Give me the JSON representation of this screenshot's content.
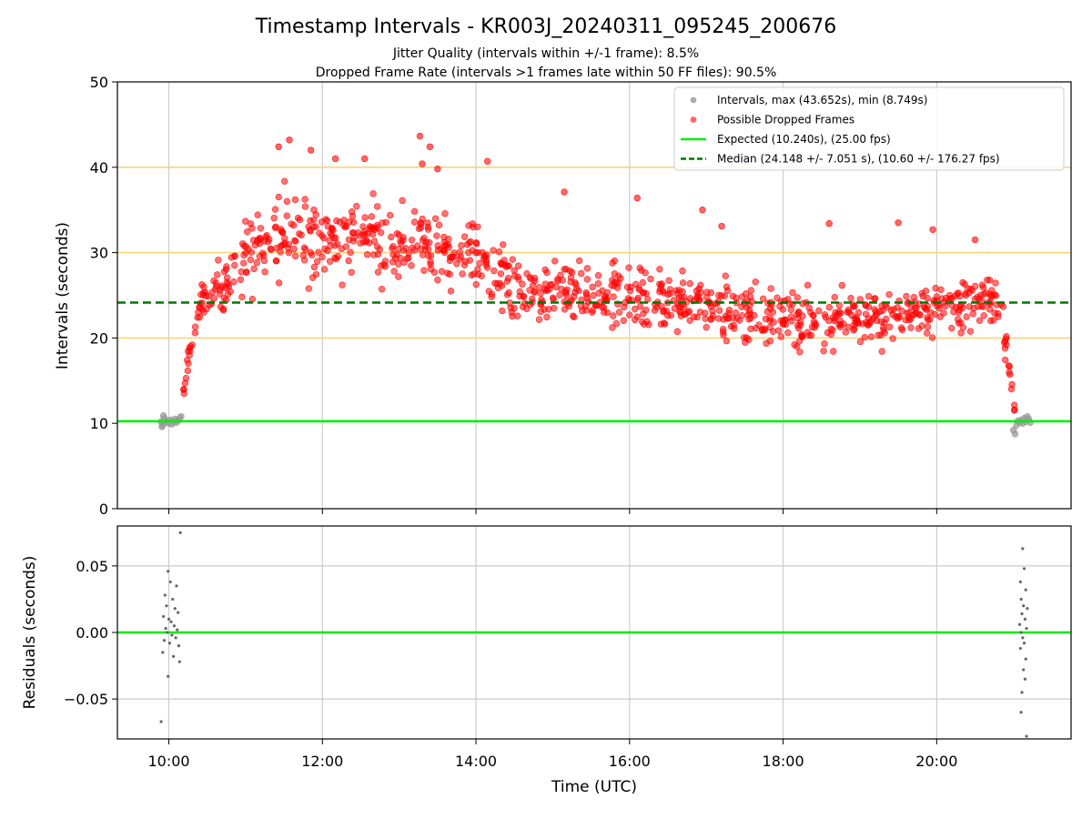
{
  "chart_data": {
    "type": "scatter",
    "title": "Timestamp Intervals - KR003J_20240311_095245_200676",
    "subtitle_lines": [
      "Jitter Quality (intervals within +/-1 frame): 8.5%",
      "Dropped Frame Rate (intervals >1 frames late within 50 FF files): 90.5%"
    ],
    "xlabel": "Time (UTC)",
    "x_unit": "hours UTC",
    "x_ticks": [
      10,
      12,
      14,
      16,
      18,
      20
    ],
    "x_tick_labels": [
      "10:00",
      "12:00",
      "14:00",
      "16:00",
      "18:00",
      "20:00"
    ],
    "xlim": [
      9.33,
      21.75
    ],
    "grid": true,
    "legend_position": "top-right",
    "colors": {
      "intervals": "#999999",
      "dropped": "#ff0000",
      "expected": "#00ee00",
      "median": "#007700",
      "band": "#f7d57a",
      "residual": "#666666",
      "grid": "#cccccc"
    },
    "top_panel": {
      "ylabel": "Intervals (seconds)",
      "ylim": [
        0,
        50
      ],
      "y_ticks": [
        0,
        10,
        20,
        30,
        40,
        50
      ],
      "y_tick_labels": [
        "0",
        "10",
        "20",
        "30",
        "40",
        "50"
      ],
      "band_lines": [
        20,
        30,
        40
      ],
      "expected_value": 10.24,
      "median_value": 24.148,
      "max_value": 43.652,
      "min_value": 8.749,
      "legend": [
        "Intervals, max (43.652s), min (8.749s)",
        "Possible Dropped Frames",
        "Expected (10.240s), (25.00 fps)",
        "Median (24.148 +/- 7.051 s), (10.60 +/- 176.27 fps)"
      ],
      "intervals_series": {
        "name": "Intervals",
        "points": [
          [
            9.9,
            10.2
          ],
          [
            9.92,
            9.8
          ],
          [
            9.94,
            10.6
          ],
          [
            9.96,
            10.1
          ],
          [
            9.98,
            10.3
          ],
          [
            10.0,
            10.0
          ],
          [
            10.02,
            10.4
          ],
          [
            10.04,
            9.9
          ],
          [
            10.06,
            10.2
          ],
          [
            10.08,
            10.5
          ],
          [
            10.1,
            10.1
          ],
          [
            10.12,
            10.3
          ],
          [
            10.14,
            10.6
          ],
          [
            9.93,
            10.9
          ],
          [
            10.16,
            10.8
          ],
          [
            9.91,
            9.6
          ],
          [
            21.0,
            9.2
          ],
          [
            21.02,
            8.75
          ],
          [
            21.04,
            9.8
          ],
          [
            21.06,
            10.3
          ],
          [
            21.08,
            10.1
          ],
          [
            21.1,
            10.4
          ],
          [
            21.12,
            10.0
          ],
          [
            21.14,
            10.6
          ],
          [
            21.16,
            10.2
          ],
          [
            21.18,
            10.8
          ],
          [
            21.2,
            10.5
          ],
          [
            21.22,
            10.1
          ]
        ]
      },
      "dropped_series": {
        "name": "Possible Dropped Frames",
        "highlights": [
          [
            11.57,
            43.2
          ],
          [
            11.43,
            42.4
          ],
          [
            11.85,
            42.0
          ],
          [
            12.17,
            41.0
          ],
          [
            12.55,
            41.0
          ],
          [
            13.27,
            43.65
          ],
          [
            13.4,
            42.4
          ],
          [
            13.3,
            40.4
          ],
          [
            13.5,
            39.8
          ],
          [
            14.15,
            40.7
          ],
          [
            15.15,
            37.1
          ],
          [
            16.1,
            36.4
          ],
          [
            16.95,
            35.0
          ],
          [
            17.2,
            33.1
          ],
          [
            18.6,
            33.4
          ],
          [
            19.5,
            33.5
          ],
          [
            19.95,
            32.7
          ],
          [
            20.5,
            31.5
          ]
        ],
        "envelope": [
          [
            10.18,
            11,
            14
          ],
          [
            10.25,
            15,
            19
          ],
          [
            10.32,
            19,
            24
          ],
          [
            10.42,
            21,
            27
          ],
          [
            10.55,
            22,
            29
          ],
          [
            10.7,
            21,
            31
          ],
          [
            10.9,
            23,
            34
          ],
          [
            11.1,
            24,
            37
          ],
          [
            11.4,
            25,
            39
          ],
          [
            11.7,
            25,
            39
          ],
          [
            12.0,
            25,
            38
          ],
          [
            12.3,
            25,
            38
          ],
          [
            12.6,
            24,
            38
          ],
          [
            12.9,
            25,
            37
          ],
          [
            13.2,
            25,
            37
          ],
          [
            13.5,
            24,
            36
          ],
          [
            13.8,
            25,
            35
          ],
          [
            14.1,
            24,
            34
          ],
          [
            14.35,
            22,
            33
          ],
          [
            14.6,
            20,
            31
          ],
          [
            15.0,
            20,
            30
          ],
          [
            15.5,
            20,
            30
          ],
          [
            16.0,
            20,
            30
          ],
          [
            16.5,
            19,
            29
          ],
          [
            17.0,
            19,
            29
          ],
          [
            17.5,
            18,
            27
          ],
          [
            18.0,
            18,
            27
          ],
          [
            18.5,
            17,
            27
          ],
          [
            19.0,
            18,
            27
          ],
          [
            19.5,
            18,
            27
          ],
          [
            20.0,
            19,
            28
          ],
          [
            20.4,
            20,
            28
          ],
          [
            20.7,
            21,
            28
          ],
          [
            20.85,
            19,
            27
          ],
          [
            20.93,
            14,
            22
          ],
          [
            20.98,
            11,
            16
          ],
          [
            21.02,
            10.3,
            12
          ]
        ]
      }
    },
    "bottom_panel": {
      "ylabel": "Residuals (seconds)",
      "ylim": [
        -0.08,
        0.08
      ],
      "y_ticks": [
        0.05,
        0.0,
        -0.05
      ],
      "y_tick_labels": [
        "0.05",
        "0.00",
        "−0.05"
      ],
      "zero_line": 0,
      "residual_points": [
        [
          10.15,
          0.075
        ],
        [
          9.99,
          0.046
        ],
        [
          10.02,
          0.038
        ],
        [
          10.1,
          0.035
        ],
        [
          9.95,
          0.028
        ],
        [
          10.05,
          0.025
        ],
        [
          9.97,
          0.02
        ],
        [
          10.08,
          0.018
        ],
        [
          10.12,
          0.015
        ],
        [
          9.93,
          0.012
        ],
        [
          10.0,
          0.01
        ],
        [
          10.03,
          0.008
        ],
        [
          10.07,
          0.005
        ],
        [
          9.96,
          0.003
        ],
        [
          10.11,
          0.002
        ],
        [
          9.98,
          0.0
        ],
        [
          10.04,
          -0.002
        ],
        [
          10.09,
          -0.004
        ],
        [
          9.94,
          -0.006
        ],
        [
          10.01,
          -0.008
        ],
        [
          10.13,
          -0.01
        ],
        [
          9.92,
          -0.015
        ],
        [
          10.06,
          -0.018
        ],
        [
          10.14,
          -0.022
        ],
        [
          9.99,
          -0.033
        ],
        [
          9.9,
          -0.067
        ],
        [
          21.12,
          0.063
        ],
        [
          21.14,
          0.048
        ],
        [
          21.09,
          0.038
        ],
        [
          21.16,
          0.032
        ],
        [
          21.1,
          0.025
        ],
        [
          21.13,
          0.02
        ],
        [
          21.18,
          0.018
        ],
        [
          21.11,
          0.014
        ],
        [
          21.15,
          0.01
        ],
        [
          21.08,
          0.006
        ],
        [
          21.17,
          0.003
        ],
        [
          21.1,
          0.0
        ],
        [
          21.12,
          -0.004
        ],
        [
          21.14,
          -0.008
        ],
        [
          21.09,
          -0.012
        ],
        [
          21.16,
          -0.02
        ],
        [
          21.13,
          -0.028
        ],
        [
          21.15,
          -0.035
        ],
        [
          21.11,
          -0.045
        ],
        [
          21.1,
          -0.06
        ],
        [
          21.17,
          -0.078
        ]
      ]
    }
  }
}
